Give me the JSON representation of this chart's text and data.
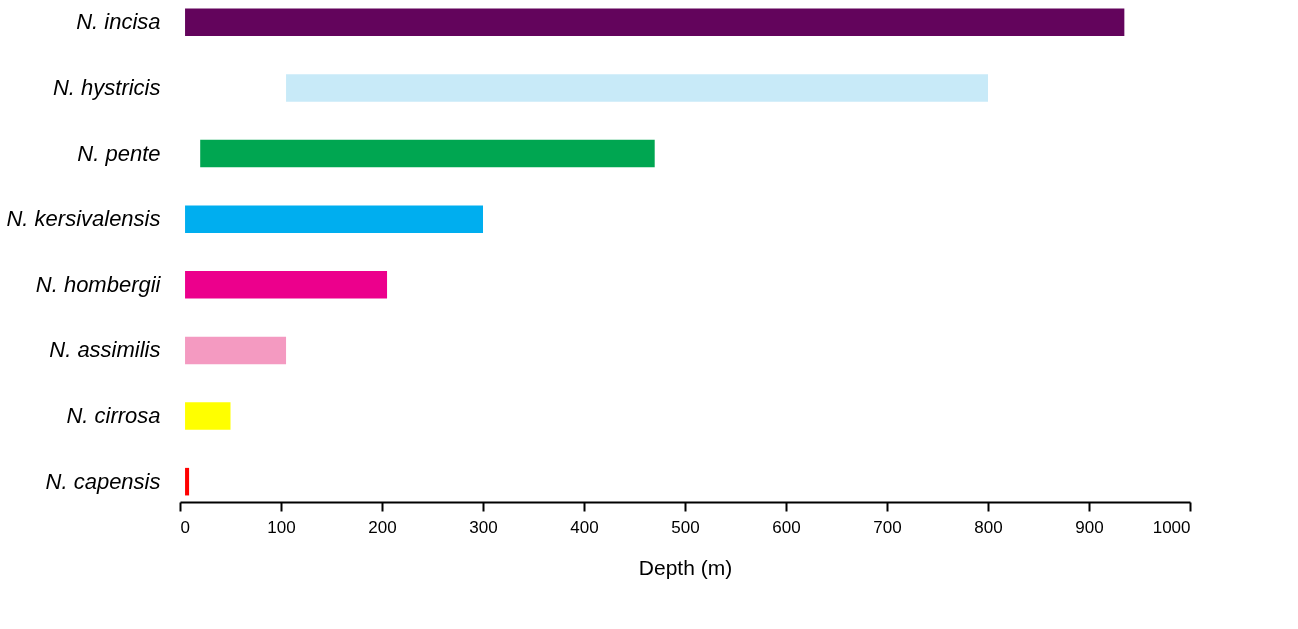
{
  "chart_data": {
    "type": "bar",
    "orientation": "horizontal",
    "xlabel": "Depth (m)",
    "categories": [
      "N. incisa",
      "N. hystricis",
      "N. pente",
      "N. kersivalensis",
      "N. hombergii",
      "N. assimilis",
      "N. cirrosa",
      "N. capensis"
    ],
    "base": [
      5,
      105,
      20,
      5,
      5,
      5,
      5,
      5
    ],
    "values": [
      930,
      695,
      450,
      295,
      200,
      100,
      45,
      4
    ],
    "colors": [
      "#63045c",
      "#c8eaf8",
      "#00a651",
      "#00aeef",
      "#ec008c",
      "#f49ac1",
      "#ffff00",
      "#ff0000"
    ],
    "xlim": [
      0,
      1000
    ],
    "xticks": [
      0,
      100,
      200,
      300,
      400,
      500,
      600,
      700,
      800,
      900,
      1000
    ],
    "grid": false
  }
}
